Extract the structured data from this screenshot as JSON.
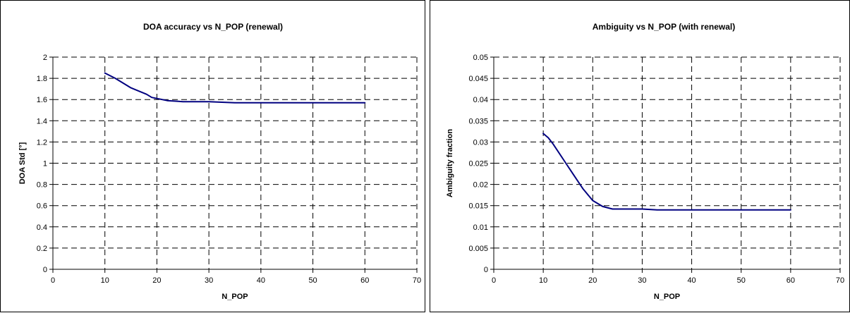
{
  "chart_data": [
    {
      "type": "line",
      "title": "DOA accuracy vs N_POP (renewal)",
      "xlabel": "N_POP",
      "ylabel": "DOA Std [°]",
      "xlim": [
        0,
        70
      ],
      "ylim": [
        0,
        2
      ],
      "x_ticks": [
        0,
        10,
        20,
        30,
        40,
        50,
        60,
        70
      ],
      "y_ticks": [
        0,
        0.2,
        0.4,
        0.6,
        0.8,
        1,
        1.2,
        1.4,
        1.6,
        1.8,
        2
      ],
      "x_tick_labels": [
        "0",
        "10",
        "20",
        "30",
        "40",
        "50",
        "60",
        "70"
      ],
      "y_tick_labels": [
        "0",
        "0.2",
        "0.4",
        "0.6",
        "0.8",
        "1",
        "1.2",
        "1.4",
        "1.6",
        "1.8",
        "2"
      ],
      "grid": true,
      "line_color": "#000080",
      "series": [
        {
          "x": [
            10,
            12,
            15,
            18,
            19,
            20,
            22,
            25,
            30,
            35,
            40,
            45,
            50,
            55,
            60
          ],
          "values": [
            1.85,
            1.8,
            1.71,
            1.65,
            1.62,
            1.61,
            1.59,
            1.58,
            1.58,
            1.57,
            1.57,
            1.57,
            1.57,
            1.57,
            1.57
          ]
        }
      ]
    },
    {
      "type": "line",
      "title": "Ambiguity vs N_POP (with renewal)",
      "xlabel": "N_POP",
      "ylabel": "Ambiguity fraction",
      "xlim": [
        0,
        70
      ],
      "ylim": [
        0,
        0.05
      ],
      "x_ticks": [
        0,
        10,
        20,
        30,
        40,
        50,
        60,
        70
      ],
      "y_ticks": [
        0,
        0.005,
        0.01,
        0.015,
        0.02,
        0.025,
        0.03,
        0.035,
        0.04,
        0.045,
        0.05
      ],
      "x_tick_labels": [
        "0",
        "10",
        "20",
        "30",
        "40",
        "50",
        "60",
        "70"
      ],
      "y_tick_labels": [
        "0",
        "0.005",
        "0.01",
        "0.015",
        "0.02",
        "0.025",
        "0.03",
        "0.035",
        "0.04",
        "0.045",
        "0.05"
      ],
      "grid": true,
      "line_color": "#000080",
      "series": [
        {
          "x": [
            10,
            11,
            12,
            14,
            16,
            18,
            20,
            22,
            24,
            30,
            33,
            40,
            50,
            60
          ],
          "values": [
            0.032,
            0.031,
            0.0295,
            0.026,
            0.0225,
            0.019,
            0.0162,
            0.0148,
            0.0142,
            0.0142,
            0.014,
            0.014,
            0.014,
            0.014
          ]
        }
      ]
    }
  ]
}
